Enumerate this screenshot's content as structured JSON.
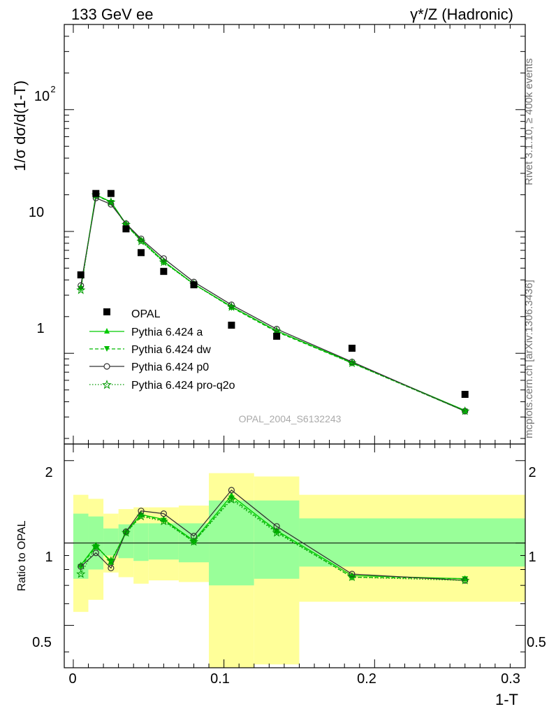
{
  "header": {
    "left": "133 GeV ee",
    "right": "γ*/Z (Hadronic)"
  },
  "side_labels": {
    "rivet": "Rivet 3.1.10, ≥ 400k events",
    "mcplots": "mcplots.cern.ch [arXiv:1306.3436]"
  },
  "watermark": "OPAL_2004_S6132243",
  "colors": {
    "data": "#000000",
    "pythia_a": "#00cc00",
    "pythia_dw": "#00bb00",
    "pythia_p0": "#333333",
    "pythia_proq2o": "#009900",
    "band_inner": "#99ff99",
    "band_outer": "#ffff99"
  },
  "chart_data": [
    {
      "type": "scatter",
      "panel": "main",
      "yscale": "log",
      "ylabel": "1/σ dσ/d(1-T)",
      "xlabel": "",
      "ylim": [
        0.18,
        500
      ],
      "xlim": [
        -0.006,
        0.3
      ],
      "yticklabels": [
        "1",
        "10",
        "10"
      ],
      "ytick_exponent": "2",
      "legend_placement": "lower-left",
      "x": [
        0.005,
        0.015,
        0.025,
        0.035,
        0.045,
        0.06,
        0.08,
        0.105,
        0.135,
        0.185,
        0.26
      ],
      "series": [
        {
          "name": "OPAL",
          "marker": "square",
          "values": [
            4.4,
            20.5,
            20.5,
            10.5,
            6.7,
            4.7,
            3.65,
            1.7,
            1.38,
            1.1,
            0.46
          ]
        },
        {
          "name": "Pythia 6.424 a",
          "marker": "triangle-up",
          "line": "solid",
          "values": [
            3.5,
            20.0,
            17.5,
            11.5,
            8.5,
            5.7,
            3.7,
            2.42,
            1.53,
            0.84,
            0.34
          ]
        },
        {
          "name": "Pythia 6.424 dw",
          "marker": "triangle-down",
          "line": "dashed",
          "values": [
            3.4,
            19.8,
            17.3,
            11.3,
            8.4,
            5.6,
            3.7,
            2.38,
            1.5,
            0.83,
            0.335
          ]
        },
        {
          "name": "Pythia 6.424 p0",
          "marker": "circle-open",
          "line": "solid",
          "values": [
            3.6,
            18.8,
            16.7,
            11.6,
            8.7,
            6.0,
            3.85,
            2.5,
            1.58,
            0.85,
            0.335
          ]
        },
        {
          "name": "Pythia 6.424 pro-q2o",
          "marker": "star-open",
          "line": "dotted",
          "values": [
            3.3,
            19.9,
            17.4,
            11.4,
            8.3,
            5.6,
            3.68,
            2.4,
            1.52,
            0.83,
            0.335
          ]
        }
      ]
    },
    {
      "type": "line",
      "panel": "ratio",
      "yscale": "log",
      "ylabel": "Ratio to OPAL",
      "xlabel": "1-T",
      "ylim": [
        0.35,
        2.3
      ],
      "xlim": [
        -0.006,
        0.3
      ],
      "yticks": [
        0.5,
        1,
        2
      ],
      "yticklabels": [
        "0.5",
        "1",
        "2"
      ],
      "xticks": [
        0,
        0.1,
        0.2,
        0.3
      ],
      "xticklabels": [
        "0",
        "0.1",
        "0.2",
        "0.3"
      ],
      "bands": [
        {
          "xlo": 0.0,
          "xhi": 0.01,
          "inner": [
            0.74,
            1.28
          ],
          "outer": [
            0.56,
            1.5
          ]
        },
        {
          "xlo": 0.01,
          "xhi": 0.02,
          "inner": [
            0.8,
            1.25
          ],
          "outer": [
            0.62,
            1.45
          ]
        },
        {
          "xlo": 0.02,
          "xhi": 0.03,
          "inner": [
            0.9,
            1.13
          ],
          "outer": [
            0.78,
            1.28
          ]
        },
        {
          "xlo": 0.03,
          "xhi": 0.04,
          "inner": [
            0.88,
            1.17
          ],
          "outer": [
            0.75,
            1.33
          ]
        },
        {
          "xlo": 0.04,
          "xhi": 0.05,
          "inner": [
            0.86,
            1.18
          ],
          "outer": [
            0.71,
            1.35
          ]
        },
        {
          "xlo": 0.05,
          "xhi": 0.07,
          "inner": [
            0.87,
            1.18
          ],
          "outer": [
            0.73,
            1.35
          ]
        },
        {
          "xlo": 0.07,
          "xhi": 0.09,
          "inner": [
            0.85,
            1.18
          ],
          "outer": [
            0.72,
            1.37
          ]
        },
        {
          "xlo": 0.09,
          "xhi": 0.12,
          "inner": [
            0.7,
            1.43
          ],
          "outer": [
            0.34,
            1.8
          ]
        },
        {
          "xlo": 0.12,
          "xhi": 0.15,
          "inner": [
            0.74,
            1.43
          ],
          "outer": [
            0.36,
            1.75
          ]
        },
        {
          "xlo": 0.15,
          "xhi": 0.3,
          "inner": [
            0.82,
            1.23
          ],
          "outer": [
            0.61,
            1.5
          ]
        }
      ],
      "x": [
        0.005,
        0.015,
        0.025,
        0.035,
        0.045,
        0.06,
        0.08,
        0.105,
        0.135,
        0.185,
        0.26
      ],
      "series": [
        {
          "name": "Pythia 6.424 a",
          "values": [
            0.83,
            0.98,
            0.85,
            1.1,
            1.27,
            1.22,
            1.02,
            1.49,
            1.11,
            0.76,
            0.74
          ]
        },
        {
          "name": "Pythia 6.424 dw",
          "values": [
            0.82,
            0.97,
            0.86,
            1.09,
            1.26,
            1.21,
            1.01,
            1.46,
            1.1,
            0.75,
            0.74
          ]
        },
        {
          "name": "Pythia 6.424 p0",
          "values": [
            0.82,
            0.92,
            0.81,
            1.1,
            1.31,
            1.28,
            1.06,
            1.56,
            1.15,
            0.77,
            0.73
          ]
        },
        {
          "name": "Pythia 6.424 pro-q2o",
          "values": [
            0.77,
            0.97,
            0.86,
            1.09,
            1.25,
            1.2,
            1.01,
            1.44,
            1.09,
            0.75,
            0.73
          ]
        }
      ]
    }
  ]
}
